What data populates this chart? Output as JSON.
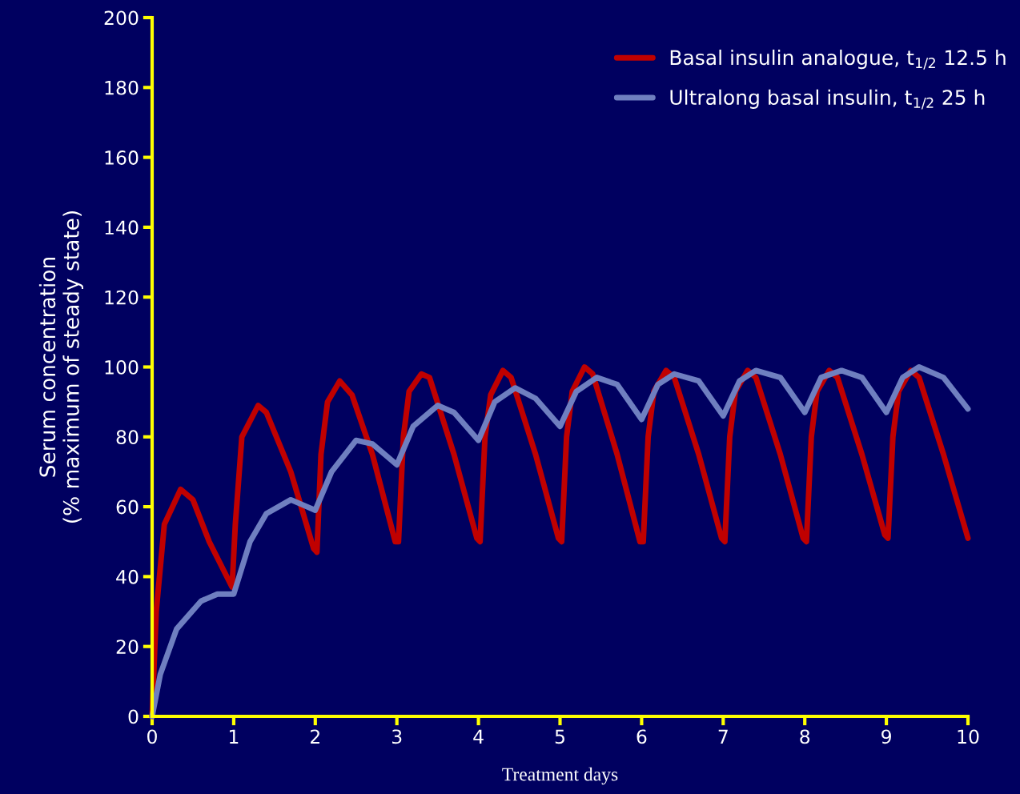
{
  "chart_data": {
    "type": "line",
    "xlabel": "Treatment days",
    "ylabel": "Serum concentration\n(% maximum of steady state)",
    "xlim": [
      0,
      10
    ],
    "ylim": [
      0,
      200
    ],
    "xticks": [
      0,
      1,
      2,
      3,
      4,
      5,
      6,
      7,
      8,
      9,
      10
    ],
    "yticks": [
      0,
      20,
      40,
      60,
      80,
      100,
      120,
      140,
      160,
      180,
      200
    ],
    "grid": false,
    "legend": "top right",
    "marker": "none",
    "line_style": "solid",
    "series": [
      {
        "name": "Basal insulin analogue, t$_{1/2}$ 12.5 h",
        "color": "#c00000",
        "x": [
          0,
          0.05,
          0.15,
          0.35,
          0.5,
          0.7,
          0.98,
          1.02,
          1.1,
          1.3,
          1.4,
          1.7,
          1.98,
          2.02,
          2.07,
          2.15,
          2.3,
          2.45,
          2.7,
          2.98,
          3.02,
          3.08,
          3.15,
          3.3,
          3.4,
          3.7,
          3.98,
          4.02,
          4.08,
          4.15,
          4.3,
          4.4,
          4.7,
          4.98,
          5.02,
          5.08,
          5.15,
          5.3,
          5.4,
          5.7,
          5.98,
          6.02,
          6.08,
          6.15,
          6.3,
          6.4,
          6.7,
          6.98,
          7.02,
          7.08,
          7.15,
          7.3,
          7.4,
          7.7,
          7.98,
          8.02,
          8.08,
          8.15,
          8.3,
          8.4,
          8.7,
          8.98,
          9.02,
          9.08,
          9.15,
          9.3,
          9.4,
          9.7,
          10
        ],
        "values": [
          0,
          30,
          55,
          65,
          62,
          50,
          37,
          55,
          80,
          89,
          87,
          70,
          48,
          47,
          75,
          90,
          96,
          92,
          75,
          50,
          50,
          80,
          93,
          98,
          97,
          75,
          51,
          50,
          80,
          92,
          99,
          97,
          75,
          51,
          50,
          80,
          93,
          100,
          98,
          75,
          50,
          50,
          80,
          93,
          99,
          97,
          75,
          51,
          50,
          80,
          93,
          99,
          97,
          75,
          51,
          50,
          80,
          93,
          99,
          97,
          75,
          52,
          51,
          80,
          93,
          99,
          97,
          75,
          51
        ]
      },
      {
        "name": "Ultralong basal insulin, t$_{1/2}$ 25 h",
        "color": "#6f7fc0",
        "x": [
          0,
          0.1,
          0.3,
          0.6,
          0.8,
          1.0,
          1.2,
          1.4,
          1.7,
          1.9,
          2.0,
          2.2,
          2.5,
          2.7,
          3.0,
          3.2,
          3.5,
          3.7,
          4.0,
          4.2,
          4.45,
          4.7,
          5.0,
          5.2,
          5.45,
          5.7,
          6.0,
          6.2,
          6.4,
          6.7,
          7.0,
          7.2,
          7.4,
          7.7,
          8.0,
          8.2,
          8.45,
          8.7,
          9.0,
          9.2,
          9.4,
          9.7,
          10
        ],
        "values": [
          0,
          12,
          25,
          33,
          35,
          35,
          50,
          58,
          62,
          60,
          59,
          70,
          79,
          78,
          72,
          83,
          89,
          87,
          79,
          90,
          94,
          91,
          83,
          93,
          97,
          95,
          85,
          95,
          98,
          96,
          86,
          96,
          99,
          97,
          87,
          97,
          99,
          97,
          87,
          97,
          100,
          97,
          88
        ]
      }
    ]
  }
}
